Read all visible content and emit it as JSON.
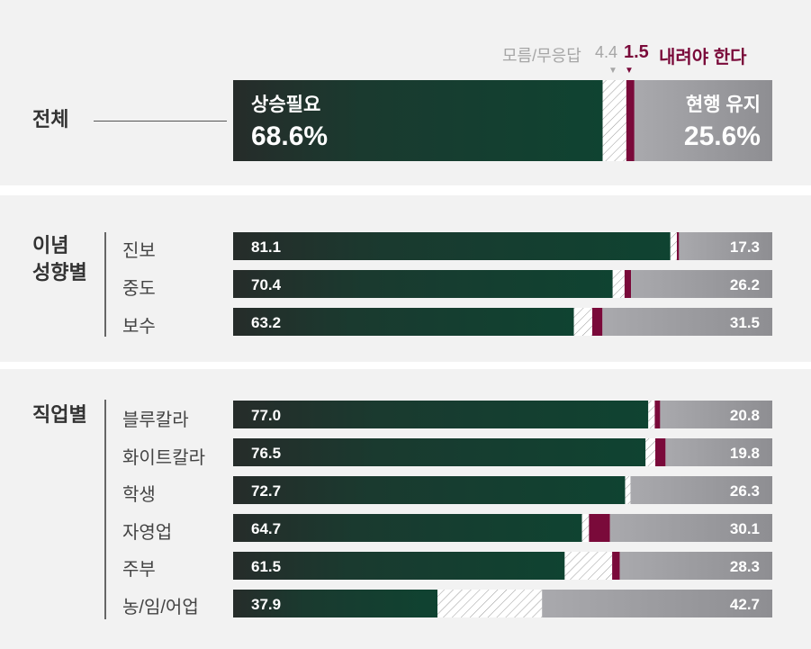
{
  "colors": {
    "up": "#123d2e",
    "dontknow": "#ffffff",
    "down": "#7a0a3a",
    "keep": "#a7a7ab",
    "panel": "#f2f2f2"
  },
  "legend": {
    "dontknow_label": "모름/무응답",
    "dontknow_value": "4.4",
    "down_value": "1.5",
    "down_label": "내려야 한다"
  },
  "overall": {
    "label": "전체",
    "up_label": "상승필요",
    "up_value": "68.6%",
    "keep_label": "현행 유지",
    "keep_value": "25.6%"
  },
  "groups": {
    "ideology": "이념\n성향별",
    "occupation": "직업별"
  },
  "chart_data": {
    "type": "bar",
    "orientation": "horizontal",
    "stacked": true,
    "series": [
      {
        "name": "상승필요",
        "values": [
          68.6,
          81.1,
          70.4,
          63.2,
          77.0,
          76.5,
          72.7,
          64.7,
          61.5,
          37.9
        ]
      },
      {
        "name": "모름/무응답",
        "values": [
          4.4,
          1.2,
          2.2,
          3.4,
          1.2,
          1.8,
          1.0,
          1.3,
          8.8,
          19.4
        ]
      },
      {
        "name": "내려야 한다",
        "values": [
          1.5,
          0.4,
          1.2,
          1.9,
          1.0,
          1.9,
          0.0,
          3.9,
          1.4,
          0.0
        ]
      },
      {
        "name": "현행 유지",
        "values": [
          25.6,
          17.3,
          26.2,
          31.5,
          20.8,
          19.8,
          26.3,
          30.1,
          28.3,
          42.7
        ]
      }
    ],
    "categories": [
      "전체",
      "진보",
      "중도",
      "보수",
      "블루칼라",
      "화이트칼라",
      "학생",
      "자영업",
      "주부",
      "농/임/어업"
    ],
    "up_labels": [
      "68.6%",
      "81.1",
      "70.4",
      "63.2",
      "77.0",
      "76.5",
      "72.7",
      "64.7",
      "61.5",
      "37.9"
    ],
    "keep_labels": [
      "25.6%",
      "17.3",
      "26.2",
      "31.5",
      "20.8",
      "19.8",
      "26.3",
      "30.1",
      "28.3",
      "42.7"
    ],
    "xlim": [
      0,
      100
    ]
  }
}
